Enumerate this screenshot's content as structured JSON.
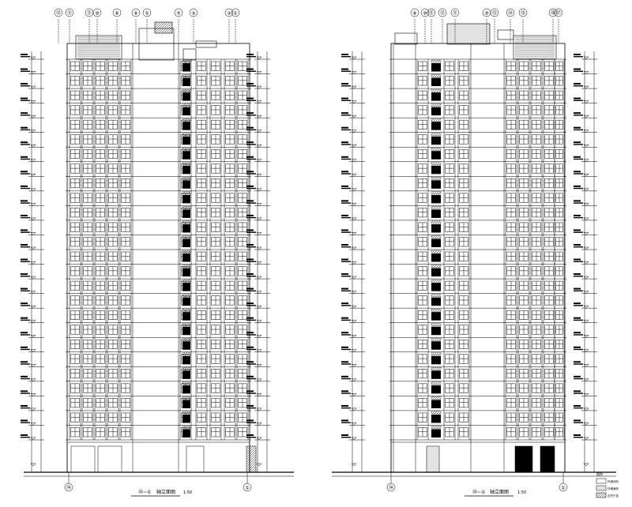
{
  "left_elevation": {
    "axis_bubbles_top": [
      "⑫",
      "⑪",
      "⑪",
      "⑩",
      "⑧",
      "⑥",
      "⑤",
      "③",
      "②"
    ],
    "axis_bubbles_bottom": [
      "⑭",
      "①"
    ],
    "caption_axes": "⑭~①",
    "caption_title": "轴立面图",
    "caption_scale": "1:50",
    "floor_count": 26
  },
  "right_elevation": {
    "axis_bubbles_top": [
      "⑧",
      "⑩",
      "⑪",
      "⑫",
      "⑪",
      "⑩",
      "⑫",
      "⑭",
      "⑮"
    ],
    "axis_bubbles_bottom": [
      "⑭",
      "①"
    ],
    "caption_axes": "⑭~①",
    "caption_title": "轴立面图",
    "caption_scale": "1:50",
    "floor_count": 26
  },
  "legend": {
    "title": "图例",
    "items": [
      "外墙涂料",
      "外墙面砖",
      "石材干挂"
    ]
  },
  "colors": {
    "line": "#000000",
    "hatch": "#000000",
    "background": "#ffffff"
  }
}
